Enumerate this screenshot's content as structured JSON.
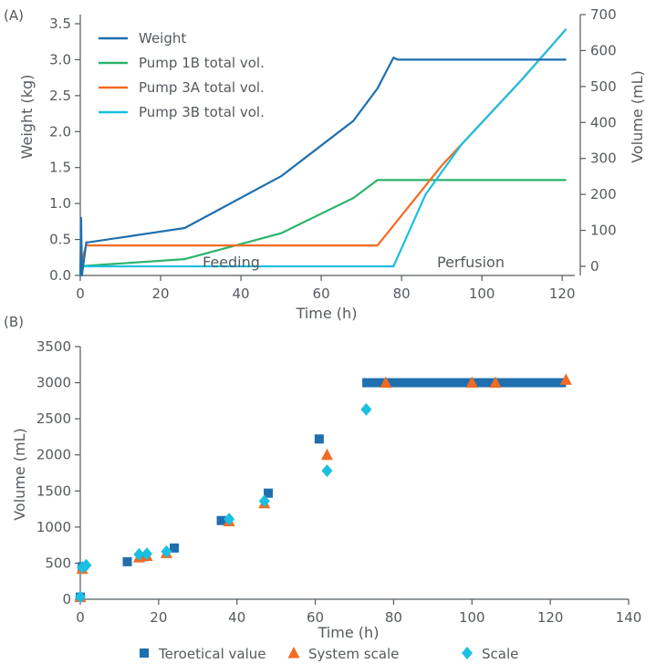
{
  "chart_data": [
    {
      "panel_label": "(A)",
      "type": "line",
      "xlabel": "Time (h)",
      "ylabel": "Weight (kg)",
      "y2label": "Volume (mL)",
      "xlim": [
        0,
        122
      ],
      "ylim": [
        0,
        3.5
      ],
      "y2lim": [
        0,
        700
      ],
      "xticks": [
        0,
        20,
        40,
        60,
        80,
        100,
        120
      ],
      "yticks": [
        0.0,
        0.5,
        1.0,
        1.5,
        2.0,
        2.5,
        3.0,
        3.5
      ],
      "y2ticks": [
        0,
        100,
        200,
        300,
        400,
        500,
        600,
        700
      ],
      "annotations": [
        "Feeding",
        "Perfusion"
      ],
      "legend_position": "top-left",
      "series": [
        {
          "name": "Weight",
          "axis": "left",
          "color": "#1f6fae",
          "x": [
            0,
            0.2,
            0.4,
            1.5,
            2,
            26,
            50,
            68,
            74,
            78,
            79,
            121
          ],
          "y": [
            0.0,
            0.8,
            0.0,
            0.46,
            0.46,
            0.66,
            1.38,
            2.15,
            2.6,
            3.03,
            3.0,
            3.0
          ]
        },
        {
          "name": "Pump 1B total vol.",
          "axis": "right",
          "color": "#2bb36b",
          "x": [
            0,
            2,
            26,
            50,
            68,
            74,
            121
          ],
          "y": [
            0,
            2,
            20,
            92,
            190,
            240,
            240
          ]
        },
        {
          "name": "Pump 3A total vol.",
          "axis": "right",
          "color": "#f26b21",
          "x": [
            0,
            1.5,
            2,
            74,
            90,
            100,
            110,
            121
          ],
          "y": [
            0,
            60,
            58,
            58,
            280,
            400,
            520,
            660
          ]
        },
        {
          "name": "Pump 3B total vol.",
          "axis": "right",
          "color": "#1bbfe0",
          "x": [
            0,
            78,
            86,
            95,
            110,
            121
          ],
          "y": [
            0,
            0,
            200,
            340,
            520,
            660
          ]
        }
      ]
    },
    {
      "panel_label": "(B)",
      "type": "scatter",
      "xlabel": "Time (h)",
      "ylabel": "Volume (mL)",
      "xlim": [
        0,
        140
      ],
      "ylim": [
        0,
        3500
      ],
      "xticks": [
        0,
        20,
        40,
        60,
        80,
        100,
        120,
        140
      ],
      "yticks": [
        0,
        500,
        1000,
        1500,
        2000,
        2500,
        3000,
        3500
      ],
      "legend_position": "bottom",
      "series": [
        {
          "name": "Teroetical value",
          "marker": "square",
          "color": "#1f6fae",
          "x": [
            0,
            0.5,
            12,
            16,
            24,
            36,
            48,
            61
          ],
          "y": [
            30,
            450,
            520,
            590,
            710,
            1090,
            1470,
            2220
          ]
        },
        {
          "name": "System scale",
          "marker": "triangle",
          "color": "#f26b21",
          "x": [
            0,
            0.5,
            15,
            17,
            22,
            38,
            47,
            63,
            78,
            100,
            106,
            124
          ],
          "y": [
            30,
            420,
            580,
            600,
            640,
            1080,
            1330,
            2000,
            3000,
            3000,
            3000,
            3040
          ]
        },
        {
          "name": "Scale",
          "marker": "diamond",
          "color": "#1bbfe0",
          "x": [
            0,
            0.5,
            1.5,
            15,
            17,
            22,
            38,
            47,
            63,
            73
          ],
          "y": [
            30,
            440,
            470,
            620,
            630,
            660,
            1110,
            1360,
            1780,
            2630
          ]
        }
      ],
      "theoretical_plateau": {
        "name": "Teroetical value",
        "x_start": 72,
        "x_end": 124,
        "y": 3000
      }
    }
  ]
}
